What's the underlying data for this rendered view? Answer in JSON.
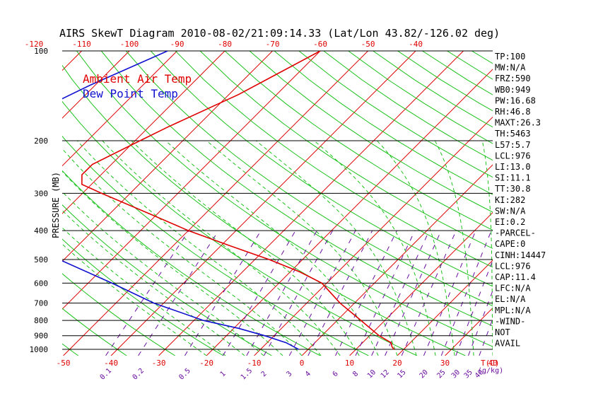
{
  "chart_data": {
    "type": "line",
    "title": "AIRS SkewT Diagram 2010-08-02/21:09:14.33 (Lat/Lon 43.82/-126.02 deg)",
    "ylabel": "PRESSURE (MB)",
    "pressure_ticks": [
      100,
      200,
      300,
      400,
      500,
      600,
      700,
      800,
      900,
      1000
    ],
    "pressure_labels": [
      "100",
      "200",
      "300",
      "400",
      "500",
      "600",
      "700",
      "800",
      "900",
      "1000"
    ],
    "top_temp_ticks": [
      "-120",
      "-110",
      "-100",
      "-90",
      "-80",
      "-70",
      "-60",
      "-50",
      "-40"
    ],
    "bottom_temp_ticks": [
      "-50",
      "-40",
      "-30",
      "-20",
      "-10",
      "0",
      "10",
      "20",
      "30",
      "40"
    ],
    "bottom_temp_unit": "T(C)",
    "mixing_ratio_ticks": [
      "0.1",
      "0.2",
      "0.5",
      "1",
      "1.5",
      "2",
      "3",
      "4",
      "6",
      "8",
      "10",
      "12",
      "15",
      "20",
      "25",
      "30",
      "35",
      "40"
    ],
    "mixing_ratio_unit": "(g/kg)",
    "legend": [
      {
        "label": "Ambient Air Temp",
        "color": "#e00000"
      },
      {
        "label": "Dew Point Temp",
        "color": "#1010d0"
      }
    ],
    "series": [
      {
        "name": "Ambient Air Temp",
        "color": "#e00000",
        "points": [
          [
            100,
            -60
          ],
          [
            140,
            -68
          ],
          [
            180,
            -76
          ],
          [
            200,
            -79
          ],
          [
            240,
            -84
          ],
          [
            260,
            -84
          ],
          [
            280,
            -82
          ],
          [
            300,
            -76
          ],
          [
            350,
            -62
          ],
          [
            400,
            -50
          ],
          [
            450,
            -38
          ],
          [
            500,
            -27
          ],
          [
            550,
            -18
          ],
          [
            600,
            -11
          ],
          [
            700,
            -3
          ],
          [
            800,
            5
          ],
          [
            900,
            12
          ],
          [
            950,
            16
          ],
          [
            980,
            17
          ],
          [
            1000,
            18
          ]
        ]
      },
      {
        "name": "Dew Point Temp",
        "color": "#1010d0",
        "points": [
          [
            100,
            -92
          ],
          [
            130,
            -101
          ],
          [
            160,
            -107
          ],
          [
            200,
            -110
          ],
          [
            250,
            -109
          ],
          [
            300,
            -105
          ],
          [
            350,
            -96
          ],
          [
            400,
            -88
          ],
          [
            500,
            -71
          ],
          [
            600,
            -55
          ],
          [
            700,
            -42
          ],
          [
            800,
            -28
          ],
          [
            850,
            -19
          ],
          [
            900,
            -12
          ],
          [
            950,
            -6
          ],
          [
            1000,
            -2
          ]
        ]
      }
    ],
    "indices": [
      "TP:100",
      "MW:N/A",
      "FRZ:590",
      "WB0:949",
      "PW:16.68",
      "RH:46.8",
      "MAXT:26.3",
      "TH:5463",
      "L57:5.7",
      "LCL:976",
      "LI:13.0",
      "SI:11.1",
      "TT:30.8",
      "KI:282",
      "SW:N/A",
      "EI:0.2",
      "-PARCEL-",
      "CAPE:0",
      "CINH:14447",
      "LCL:976",
      "CAP:11.4",
      "LFC:N/A",
      "EL:N/A",
      "MPL:N/A",
      "-WIND-",
      "NOT",
      "AVAIL"
    ],
    "colors": {
      "isotherm": "#e00000",
      "dry_adiabat": "#1cc21c",
      "moist_adiabat": "#1cc21c",
      "mixing_ratio": "#6a0d9e",
      "isobar": "#000000"
    },
    "grid": true
  }
}
